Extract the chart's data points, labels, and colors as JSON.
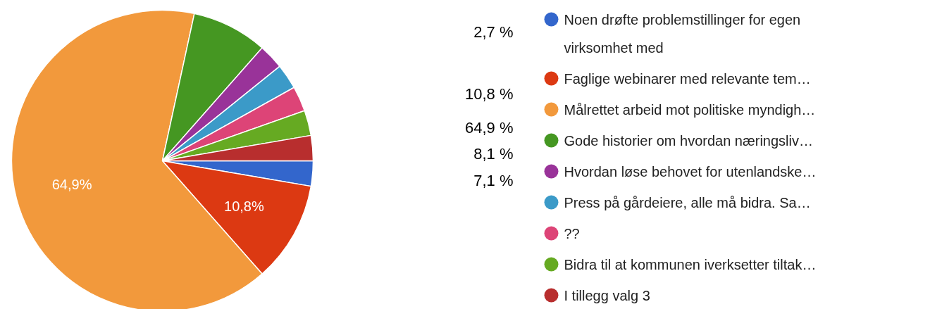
{
  "chart_data": {
    "type": "pie",
    "categories": [
      "Noen drøfte problemstillinger for egen virksomhet med",
      "Faglige webinarer med relevante tem…",
      "Målrettet arbeid mot politiske myndigh…",
      "Gode historier om hvordan næringsliv…",
      "Hvordan løse behovet for utenlandske…",
      "Press på gårdeiere, alle må bidra. Sa…",
      "??",
      "Bidra til at kommunen iverksetter tiltak…",
      "I tillegg valg 3"
    ],
    "values": [
      2.7,
      10.8,
      64.9,
      8.1,
      2.7,
      2.7,
      2.7,
      2.7,
      2.7
    ],
    "colors": [
      "#3366cc",
      "#dc3912",
      "#f2993c",
      "#459722",
      "#993399",
      "#3b9ac8",
      "#dd4477",
      "#66aa22",
      "#b82e2e"
    ],
    "value_labels": [
      null,
      "10,8%",
      "64,9%",
      null,
      null,
      null,
      null,
      null,
      null
    ],
    "legend": "right",
    "annotations": [
      "2,7 %",
      "10,8 %",
      "64,9 %",
      "8,1 %",
      "7,1 %"
    ]
  }
}
